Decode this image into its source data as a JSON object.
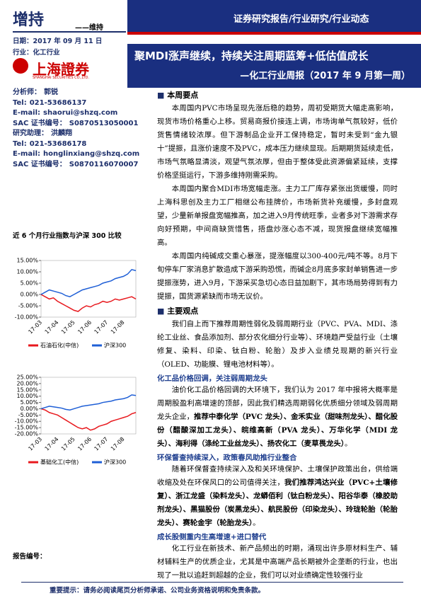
{
  "header": {
    "rating": "增持",
    "rating_sub": "——维持",
    "banner": "证券研究报告/行业研究/行业动态",
    "date": "日期：2017 年 09 月 11 日",
    "industry": "行业：化工行业",
    "logo": "上海證券",
    "logo_en": "SHANGHAI SECURITIES CO.,LTD.",
    "title": "聚MDI涨声继续，持续关注周期蓝筹+低估值成长",
    "subtitle": "—化工行业周报（2017 年 9 月第一周）"
  },
  "analysts": [
    [
      "分析师：",
      "郭锐"
    ],
    [
      "Tel:",
      "021-53686137"
    ],
    [
      "E-mail:",
      "shaorui@shzq.com"
    ],
    [
      "SAC 证书编号：",
      "S0870513050001"
    ],
    [
      "研究助理：",
      "洪麟翔"
    ],
    [
      "Tel:",
      "021-53686178"
    ],
    [
      "E-mail:",
      "honglinxiang@shzq.com"
    ],
    [
      "SAC 证书编号：",
      "S0870116070007"
    ]
  ],
  "charts_title": "近 6 个月行业指数与沪深 300 比较",
  "charts": [
    {
      "chart_data": {
        "type": "line",
        "categories": [
          "17-03",
          null,
          null,
          null,
          "17-04",
          null,
          null,
          null,
          "17-05",
          null,
          null,
          null,
          "17-06",
          null,
          null,
          null,
          "17-07",
          null,
          null,
          null,
          "17-08",
          null,
          null,
          null
        ],
        "ylim": [
          -10,
          15
        ],
        "yticks": [
          {
            "value": -10,
            "label": "-10.00%"
          },
          {
            "value": -5,
            "label": "-5.00%"
          },
          {
            "value": 0,
            "label": "0.00%"
          },
          {
            "value": 5,
            "label": "5.00%"
          },
          {
            "value": 10,
            "label": "10.00%"
          },
          {
            "value": 15,
            "label": "15.00%"
          }
        ],
        "series": [
          {
            "name": "石油石化(中信)",
            "color": "#e8191e",
            "values": [
              0,
              -1,
              -2,
              -1.5,
              -3,
              -4,
              -5,
              -6,
              -7,
              -7.5,
              -6,
              -5,
              -5.5,
              -4.5,
              -4,
              -3,
              -3.5,
              -3,
              -2,
              -2.5,
              -2,
              -1.5,
              -1,
              -2
            ]
          },
          {
            "name": "沪深300",
            "color": "#1f5fd6",
            "values": [
              0,
              1,
              2,
              1.5,
              1,
              0.5,
              -0.5,
              -1,
              0,
              1,
              2,
              2.5,
              3,
              3.5,
              4,
              5,
              5.5,
              6,
              7,
              7.5,
              8,
              9,
              11,
              10.5
            ]
          }
        ]
      }
    },
    {
      "chart_data": {
        "type": "line",
        "categories": [
          "17-03",
          null,
          null,
          null,
          "17-04",
          null,
          null,
          null,
          "17-05",
          null,
          null,
          null,
          "17-06",
          null,
          null,
          null,
          "17-07",
          null,
          null,
          null,
          "17-08",
          null,
          null,
          null
        ],
        "ylim": [
          -20,
          25
        ],
        "yticks": [
          {
            "value": -20,
            "label": "-20.00%"
          },
          {
            "value": -15,
            "label": "-15.00%"
          },
          {
            "value": -10,
            "label": "-10.00%"
          },
          {
            "value": -5,
            "label": "-5.00%"
          },
          {
            "value": 0,
            "label": "0.00%"
          },
          {
            "value": 5,
            "label": "5.00%"
          },
          {
            "value": 10,
            "label": "10.00%"
          },
          {
            "value": 15,
            "label": "15.00%"
          },
          {
            "value": 20,
            "label": "20.00%"
          },
          {
            "value": 25,
            "label": "25.00%"
          }
        ],
        "series": [
          {
            "name": "基础化工(中信)",
            "color": "#e8191e",
            "values": [
              0,
              -1,
              -3,
              -4,
              -5,
              -7,
              -9,
              -11,
              -13,
              -15,
              -16,
              -15,
              -17,
              -16,
              -14,
              -13,
              -12,
              -10,
              -9,
              -8,
              -7,
              -6,
              -4,
              -3
            ]
          },
          {
            "name": "沪深300",
            "color": "#1f5fd6",
            "values": [
              0,
              1,
              2,
              1.5,
              1,
              0.5,
              -0.5,
              -1,
              0,
              1,
              2,
              2.5,
              3,
              3.5,
              4,
              5,
              5.5,
              6,
              7,
              7.5,
              8,
              9,
              11,
              10.5
            ]
          }
        ]
      }
    }
  ],
  "body": {
    "section1": {
      "heading": "本周要点",
      "paragraphs": [
        "本周国内PVC市场呈现先涨后稳的趋势，周初受期货大幅走高影响，现货市场价格重心上移。贸易商报价接连上调，市场询单气氛较好，低价货售情绪较浓厚。但下游制品企业开工保持稳定，暂时未受到“金九银十”提振，且涨价速度不及PVC，成本压力继续显现。后期期货延续走低，市场气氛略显清淡，观望气氛浓厚，但由于整体受此资源偏紧延续，支撑价格坚挺运行，下游多维持刚需采购。",
        "本周国内聚合MDI市场宽幅走涨。主力工厂库存紧张出货缓慢，同时上海科思创及主力工厂相继公布挂牌价，市场新货补充缓慢，多封盘观望，少量新单报盘宽幅推高，加之进入9月传统旺季，业者多对下游需求存向好预期，中间商缺货惜售，捂盘炒涨心态不减，现货报盘继续宽幅推高。",
        "本周国内纯碱成交重心暴涨，提涨幅度以300-400元/吨不等。8月下旬停车厂家消息扩散造成下游采购恐慌，而碱企8月底多家封单销售进一步提振涨势，进入9月，下游采买急切心态日益加剧下，其市场局势得到有力提振，国货源紧缺而市场无议价。"
      ]
    },
    "section2": {
      "heading": "主要观点",
      "intro": "我们自上而下推荐周期性弱化及弱周期行业（PVC、PVA、MDI、涤纶工业丝、食品添加剂、部分农化细分行业等）、环境趋严受益行业（土壤修复、染料、印染、钛白粉、轮胎）及步入业绩兑现期的新兴行业（OLED、功能膜、锂电池材料等）。",
      "topics": [
        {
          "heading": "化工品价格回调，关注弱周期龙头",
          "runs": [
            "油价化工品价格回调的大环境下，我们认为 2017 年中报将大概率是周期股盈利高增速的顶部，因此我们精选周期弱化优质细分领域及弱周期龙头企业，",
            "推荐中泰化学（PVC 龙头）、金禾实业（甜味剂龙头）、醋化股份（醋酸深加工龙头）、皖维高新（PVA 龙头）、万华化学（MDI 龙头）、海利得（涤纶工业丝龙头）、扬农化工（麦草畏龙头）",
            "。"
          ]
        },
        {
          "heading": "环保督查持续深入，政策春风助推行业整合",
          "runs": [
            "随着环保督查持续深入及和关环境保护、土壤保护政策出台，供给端收缩及处在环保风口的公司值得关注，",
            "我们推荐鸿达兴业（PVC+土壤修复）、浙江龙盛（染料龙头）、龙蟒佰利（钛白粉龙头）、阳谷华泰（橡胶助剂龙头）、黑猫股份（炭黑龙头）、航民股份（印染龙头）、玲珑轮胎（轮胎龙头）、赛轮金宇（轮胎龙头）",
            "。"
          ]
        },
        {
          "heading": "成长股侧重内生高增速+进口替代",
          "runs": [
            "化工行业在新技术、新产品频出的时期，涌现出许多原材料生产、辅材辅料生产的优质企业，尤其是中高端产品长期被外企垄断的行业，也出现了一批以追赶到超越的企业，我们可以对业绩确定性较强行业"
          ]
        }
      ]
    }
  },
  "footer": {
    "report_no": "报告编号：",
    "notice": "重要提示：请务必阅读尾页分析师承诺、公司业务资格说明和免责条款。"
  }
}
